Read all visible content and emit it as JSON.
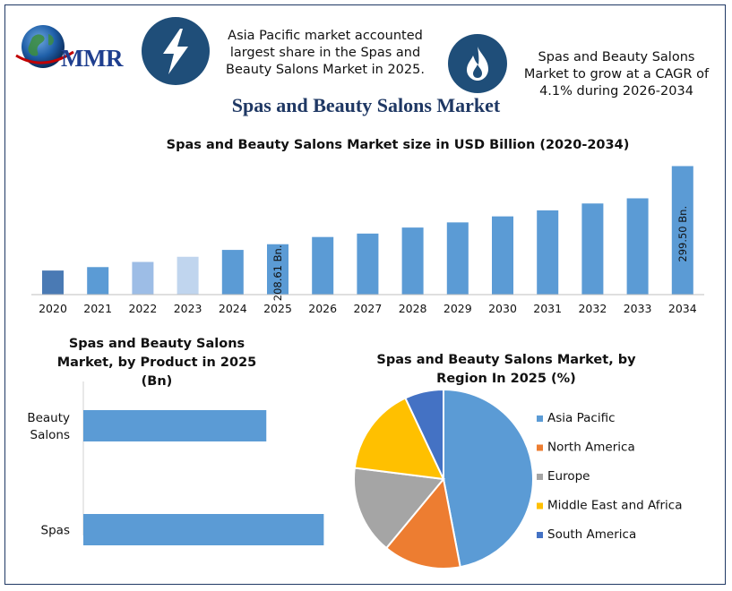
{
  "logo": {
    "text": "MMR"
  },
  "header": {
    "info_left": "Asia Pacific market accounted largest share in the Spas and Beauty Salons Market in 2025.",
    "info_right": "Spas and Beauty Salons Market to grow at a CAGR of 4.1% during 2026-2034",
    "icon_left": "lightning-bolt-icon",
    "icon_right": "flame-icon",
    "icon_color": "#1f4e79"
  },
  "main_title": "Spas and Beauty Salons Market",
  "chart_data": [
    {
      "type": "bar",
      "title": "Spas and Beauty Salons Market size in USD Billion (2020-2034)",
      "categories": [
        "2020",
        "2021",
        "2022",
        "2023",
        "2024",
        "2025",
        "2026",
        "2027",
        "2028",
        "2029",
        "2030",
        "2031",
        "2032",
        "2033",
        "2034"
      ],
      "values": [
        178,
        182,
        188,
        194,
        202,
        208.61,
        217,
        221,
        228,
        234,
        241,
        248,
        256,
        262,
        299.5
      ],
      "colors": [
        "#4a7ab4",
        "#5b9bd5",
        "#9dbde6",
        "#c0d5ee",
        "#5b9bd5",
        "#5b9bd5",
        "#5b9bd5",
        "#5b9bd5",
        "#5b9bd5",
        "#5b9bd5",
        "#5b9bd5",
        "#5b9bd5",
        "#5b9bd5",
        "#5b9bd5",
        "#5b9bd5"
      ],
      "data_labels": {
        "2025": "208.61 Bn.",
        "2034": "299.50 Bn."
      },
      "grid": false
    },
    {
      "type": "bar",
      "orientation": "horizontal",
      "title": "Spas and Beauty Salons Market, by Product in 2025 (Bn)",
      "categories": [
        "Beauty Salons",
        "Spas"
      ],
      "values": [
        86,
        113
      ],
      "color": "#5b9bd5"
    },
    {
      "type": "pie",
      "title": "Spas and Beauty Salons Market, by Region In 2025 (%)",
      "labels": [
        "Asia Pacific",
        "North America",
        "Europe",
        "Middle East and Africa",
        "South America"
      ],
      "values": [
        47,
        14,
        16,
        16,
        7
      ],
      "colors": [
        "#5b9bd5",
        "#ed7d31",
        "#a5a5a5",
        "#ffc000",
        "#4472c4"
      ],
      "legend": "right"
    }
  ]
}
